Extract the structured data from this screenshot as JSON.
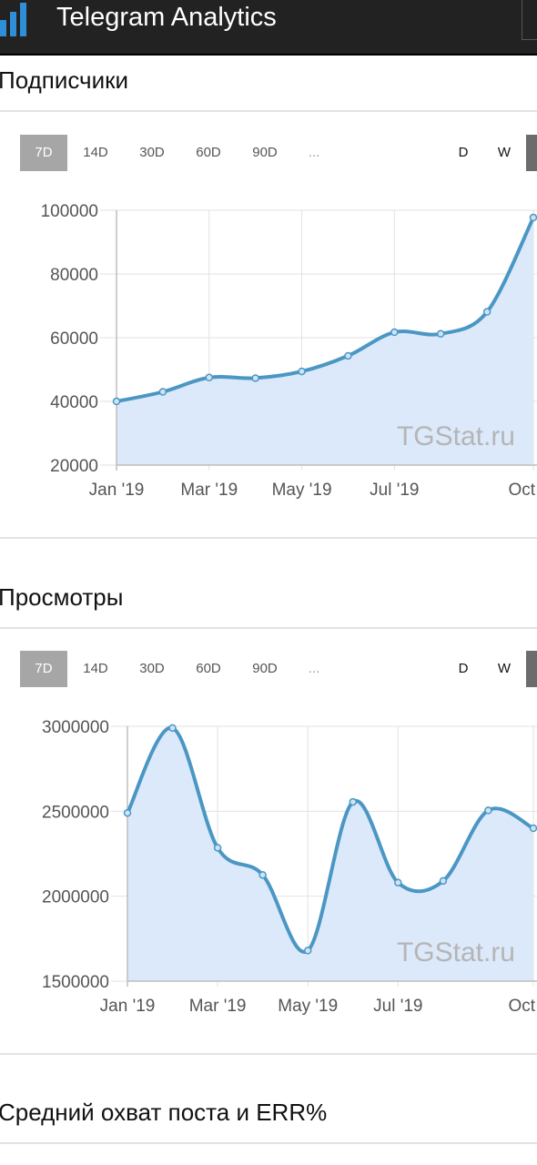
{
  "app": {
    "title": "Telegram Analytics",
    "accent": "#2e8fd8",
    "header_bg": "#222222"
  },
  "sections": [
    {
      "title": "Подписчики",
      "tabs": [
        "7D",
        "14D",
        "30D",
        "60D",
        "90D",
        "..."
      ],
      "active_tab": "7D",
      "granularity": [
        "D",
        "W"
      ]
    },
    {
      "title": "Просмотры",
      "tabs": [
        "7D",
        "14D",
        "30D",
        "60D",
        "90D",
        "..."
      ],
      "active_tab": "7D",
      "granularity": [
        "D",
        "W"
      ]
    },
    {
      "title": "Средний охват поста и ERR%"
    }
  ],
  "chart_data": [
    {
      "type": "area",
      "watermark": "TGStat.ru",
      "line_color": "#4b97c4",
      "fill_color": "#dce9fb",
      "x_ticks": [
        "Jan '19",
        "Mar '19",
        "May '19",
        "Jul '19",
        "Oct"
      ],
      "x_tick_pos": [
        0,
        2,
        4,
        6,
        9
      ],
      "y_ticks": [
        20000,
        40000,
        60000,
        80000,
        100000
      ],
      "ylim": [
        20000,
        100000
      ],
      "xlim": [
        0,
        9
      ],
      "grid": true,
      "x": [
        0,
        1,
        2,
        3,
        4,
        5,
        6,
        7,
        8,
        9
      ],
      "values": [
        40000,
        43000,
        47500,
        47300,
        49400,
        54300,
        61700,
        61200,
        68100,
        97700
      ]
    },
    {
      "type": "area",
      "watermark": "TGStat.ru",
      "line_color": "#4b97c4",
      "fill_color": "#dce9fb",
      "x_ticks": [
        "Jan '19",
        "Mar '19",
        "May '19",
        "Jul '19",
        "Oct"
      ],
      "x_tick_pos": [
        0,
        2,
        4,
        6,
        9
      ],
      "y_ticks": [
        1500000,
        2000000,
        2500000,
        3000000
      ],
      "ylim": [
        1500000,
        3000000
      ],
      "xlim": [
        0,
        9
      ],
      "grid": true,
      "x": [
        0,
        1,
        2,
        3,
        4,
        5,
        6,
        7,
        8,
        9
      ],
      "values": [
        2490000,
        2990000,
        2285000,
        2125000,
        1680000,
        2555000,
        2080000,
        2090000,
        2505000,
        2400000
      ]
    }
  ]
}
